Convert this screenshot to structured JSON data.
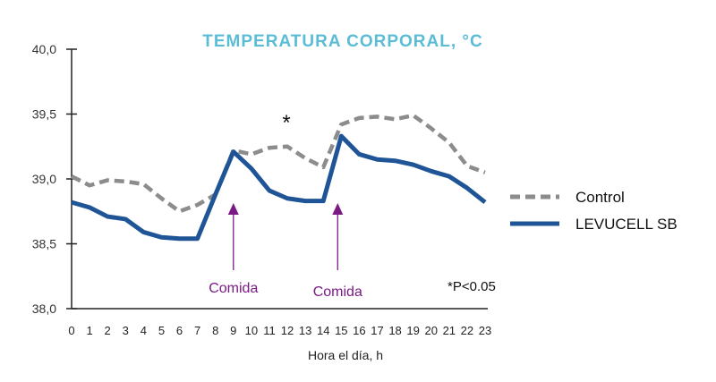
{
  "chart_data": {
    "type": "line",
    "title": "TEMPERATURA CORPORAL, °C",
    "xlabel": "Hora el día, h",
    "ylabel": "",
    "xlim": [
      0,
      23
    ],
    "ylim": [
      38.0,
      40.0
    ],
    "x": [
      0,
      1,
      2,
      3,
      4,
      5,
      6,
      7,
      8,
      9,
      10,
      11,
      12,
      13,
      14,
      15,
      16,
      17,
      18,
      19,
      20,
      21,
      22,
      23
    ],
    "yticks": [
      "38,0",
      "38,5",
      "39,0",
      "39,5",
      "40,0"
    ],
    "ytick_values": [
      38.0,
      38.5,
      39.0,
      39.5,
      40.0
    ],
    "grid": false,
    "legend_placement": "right",
    "series": [
      {
        "name": "Control",
        "color": "#8c8c8c",
        "style": "dashed",
        "values": [
          39.02,
          38.95,
          38.99,
          38.98,
          38.96,
          38.85,
          38.75,
          38.8,
          38.88,
          39.22,
          39.19,
          39.24,
          39.25,
          39.16,
          39.09,
          39.42,
          39.47,
          39.48,
          39.46,
          39.49,
          39.39,
          39.28,
          39.1,
          39.05
        ]
      },
      {
        "name": "LEVUCELL SB",
        "color": "#1f5596",
        "style": "solid",
        "values": [
          38.82,
          38.78,
          38.71,
          38.69,
          38.59,
          38.55,
          38.54,
          38.54,
          38.88,
          39.21,
          39.08,
          38.91,
          38.85,
          38.83,
          38.83,
          39.33,
          39.19,
          39.15,
          39.14,
          39.11,
          39.06,
          39.02,
          38.93,
          38.82
        ]
      }
    ],
    "annotations": [
      {
        "text": "Comida",
        "x": 9,
        "type": "arrow",
        "color": "#7b1a85"
      },
      {
        "text": "Comida",
        "x": 14.8,
        "type": "arrow",
        "color": "#7b1a85"
      },
      {
        "text": "*",
        "x": 12,
        "y": 39.45
      },
      {
        "text": "*P<0.05"
      }
    ],
    "title_color": "#5bbcd6"
  }
}
